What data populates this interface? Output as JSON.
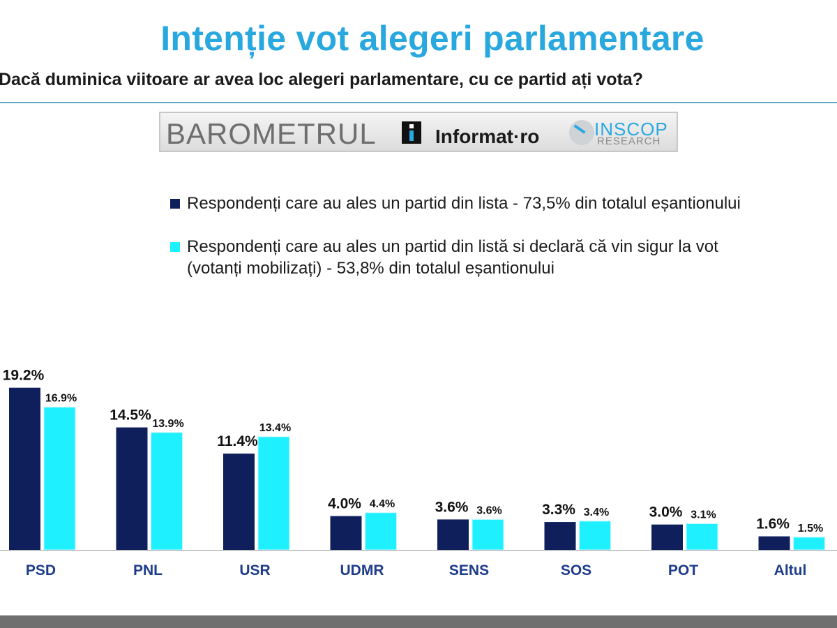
{
  "chart_data": {
    "type": "bar",
    "title": "Intenție vot alegeri parlamentare",
    "subtitle": "Dacă duminica viitoare ar avea loc alegeri parlamentare, cu ce partid ați vota?",
    "categories": [
      "PSD",
      "PNL",
      "USR",
      "UDMR",
      "SENS",
      "SOS",
      "POT",
      "Altul"
    ],
    "series": [
      {
        "name": "Respondenți care au ales un partid din lista - 73,5% din totalul eșantionului",
        "color": "#0f1f5c",
        "values": [
          19.2,
          14.5,
          11.4,
          4.0,
          3.6,
          3.3,
          3.0,
          1.6
        ],
        "labels": [
          "19.2%",
          "14.5%",
          "11.4%",
          "4.0%",
          "3.6%",
          "3.3%",
          "3.0%",
          "1.6%"
        ]
      },
      {
        "name": "Respondenți care au ales un partid din listă si declară că vin sigur la vot (votanți mobilizați) - 53,8% din totalul eșantionului",
        "color": "#1ff0ff",
        "values": [
          16.9,
          13.9,
          13.4,
          4.4,
          3.6,
          3.4,
          3.1,
          1.5
        ],
        "labels": [
          "16.9%",
          "13.9%",
          "13.4%",
          "4.4%",
          "3.6%",
          "3.4%",
          "3.1%",
          "1.5%"
        ]
      }
    ],
    "ylim": [
      0,
      20
    ],
    "grid": false,
    "legend": "top-right"
  },
  "legend": {
    "line1": "Respondenți care au ales un partid din lista - 73,5% din totalul eșantionului",
    "line2a": "Respondenți care au ales un partid din listă si declară că vin sigur la vot",
    "line2b": "(votanți mobilizați) - 53,8% din totalul eșantionului"
  },
  "logos": {
    "barometrul": "BAROMETRUL",
    "informat": "Informat·ro",
    "inscop": "INSCOP",
    "research": "RESEARCH"
  }
}
